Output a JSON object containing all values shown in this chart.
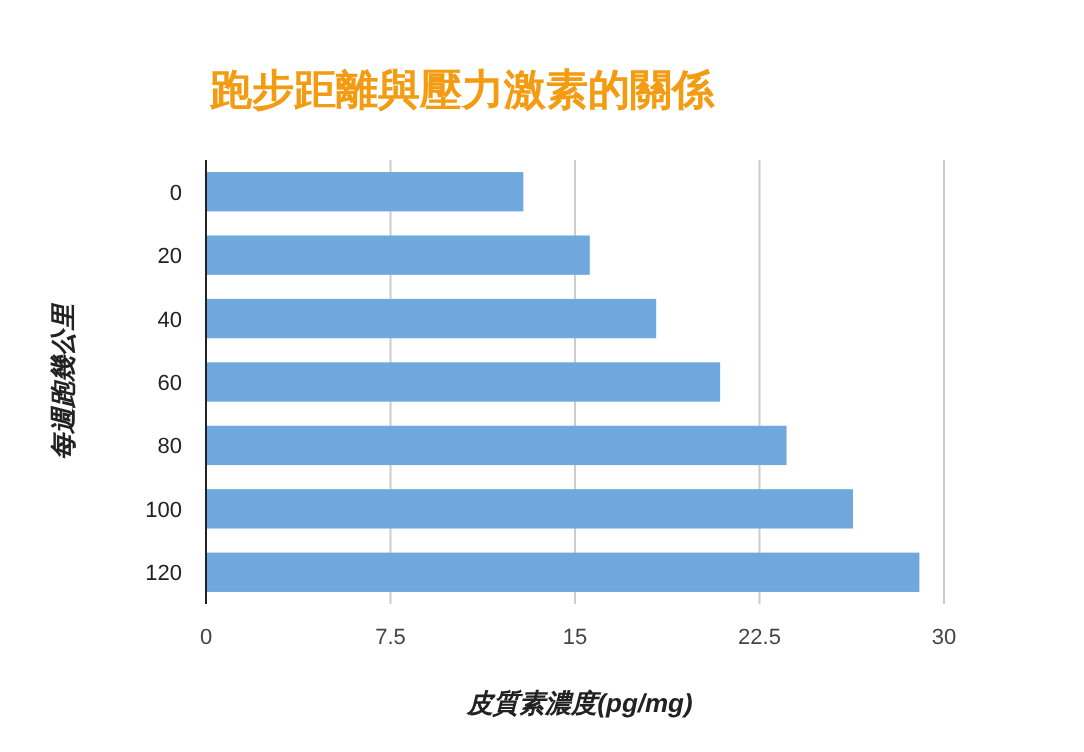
{
  "chart_data": {
    "type": "bar",
    "orientation": "horizontal",
    "title": "跑步距離與壓力激素的關係",
    "xlabel": "皮質素濃度(pg/mg)",
    "ylabel": "每週跑幾公里",
    "categories": [
      "0",
      "20",
      "40",
      "60",
      "80",
      "100",
      "120"
    ],
    "values": [
      12.9,
      15.6,
      18.3,
      20.9,
      23.6,
      26.3,
      29.0
    ],
    "color": "#6fa8dc",
    "xlim": [
      0,
      30
    ],
    "xticks": [
      0,
      7.5,
      15,
      22.5,
      30
    ],
    "grid": "x"
  }
}
